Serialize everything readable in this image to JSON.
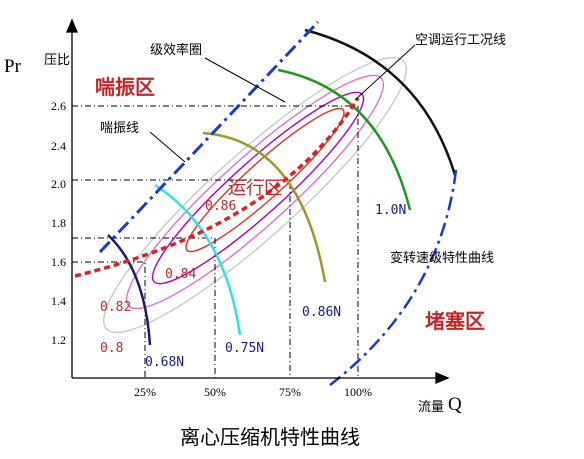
{
  "title": "离心压缩机特性曲线",
  "axes": {
    "y_symbol": "Pr",
    "y_name": "压比",
    "x_name": "流量",
    "x_symbol": "Q",
    "y_ticks": [
      "2.6",
      "2.4",
      "2.0",
      "1.8",
      "1.6",
      "1.4",
      "1.2"
    ],
    "x_ticks": [
      "25%",
      "50%",
      "75%",
      "100%"
    ]
  },
  "regions": {
    "surge_zone": "喘振区",
    "operating_zone": "运行区",
    "choke_zone": "堵塞区"
  },
  "annotations": {
    "efficiency_rings": "级效率圈",
    "ac_operating_line": "空调运行工况线",
    "surge_line": "喘振线",
    "variable_speed_curves": "变转速级特性曲线"
  },
  "efficiency_labels": [
    "0.86",
    "0.84",
    "0.82",
    "0.8"
  ],
  "speed_labels": [
    "0.68N",
    "0.75N",
    "0.86N",
    "1.0N"
  ]
}
